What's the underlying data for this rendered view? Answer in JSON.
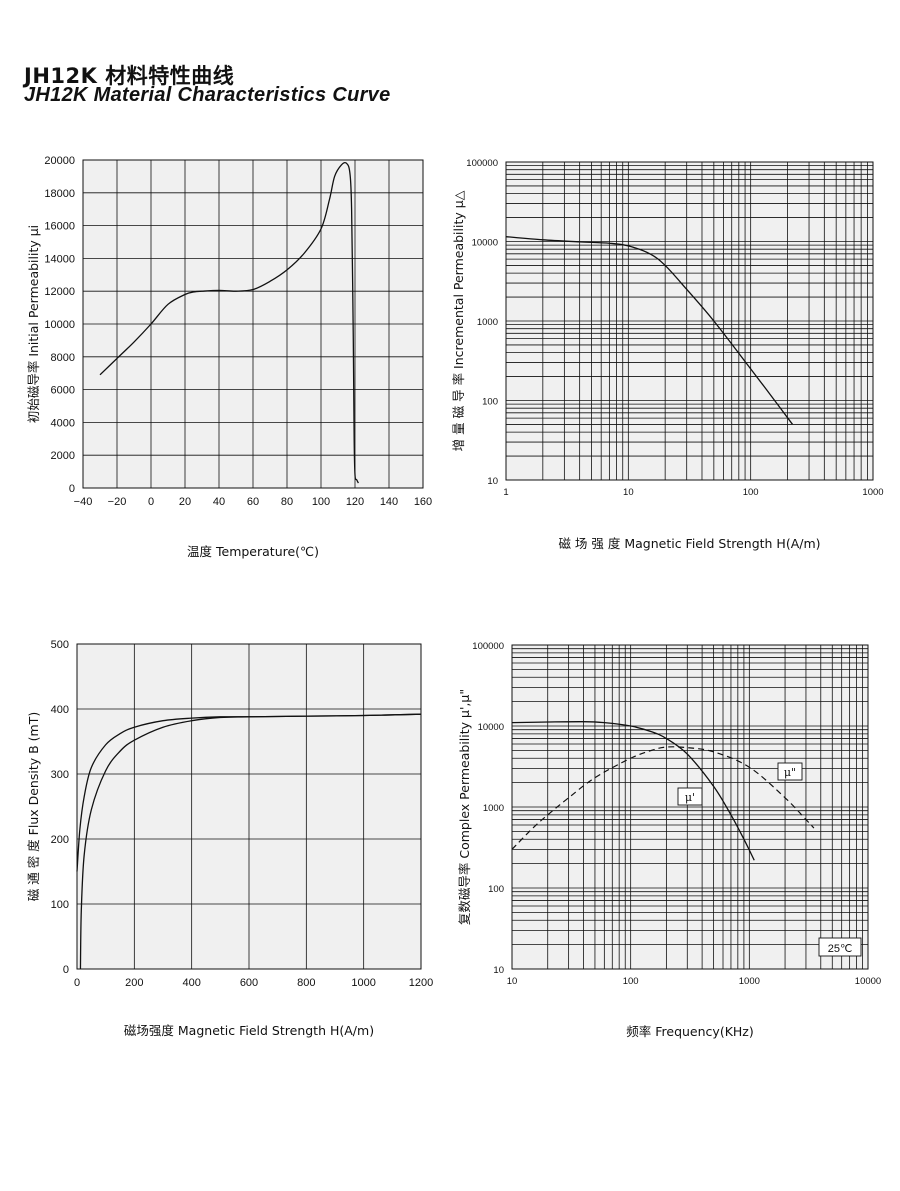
{
  "header": {
    "title_cn": "JH12K 材料特性曲线",
    "title_en": "JH12K  Material Characteristics Curve"
  },
  "chart_data": [
    {
      "type": "line",
      "id": "perm_vs_temp",
      "xlabel": "温度 Temperature(℃)",
      "ylabel": "初始磁导率  Initial Permeability μi",
      "xlim": [
        -40,
        160
      ],
      "ylim": [
        0,
        20000
      ],
      "x_ticks": [
        -40,
        -20,
        0,
        20,
        40,
        60,
        80,
        100,
        120,
        140,
        160
      ],
      "x_tick_labels": [
        "−40",
        "−20",
        "0",
        "20",
        "40",
        "60",
        "80",
        "100",
        "120",
        "140",
        "160"
      ],
      "y_ticks": [
        0,
        2000,
        4000,
        6000,
        8000,
        10000,
        12000,
        14000,
        16000,
        18000,
        20000
      ],
      "y_tick_labels": [
        "0",
        "2000",
        "4000",
        "6000",
        "8000",
        "10000",
        "12000",
        "14000",
        "16000",
        "18000",
        "20000"
      ],
      "grid": true,
      "series": [
        {
          "x": [
            -30,
            -20,
            -10,
            0,
            10,
            20,
            25,
            30,
            40,
            50,
            60,
            70,
            80,
            90,
            100,
            105,
            108,
            112,
            115,
            117,
            118,
            119,
            119.5,
            120,
            121,
            122
          ],
          "y": [
            6900,
            7900,
            8900,
            10000,
            11200,
            11800,
            11950,
            12000,
            12050,
            12000,
            12100,
            12600,
            13300,
            14300,
            15800,
            17600,
            19000,
            19700,
            19800,
            19200,
            17000,
            9000,
            3000,
            800,
            500,
            300
          ]
        }
      ]
    },
    {
      "type": "line",
      "id": "incr_perm_vs_field",
      "xlabel": "磁 场 强 度     Magnetic Field Strength H(A/m)",
      "ylabel": "增 量 磁 导 率   Incremental Permeability μ△",
      "x_log": true,
      "y_log": true,
      "xlim": [
        1,
        1000
      ],
      "ylim": [
        10,
        100000
      ],
      "x_ticks": [
        1,
        10,
        100,
        1000
      ],
      "x_tick_labels": [
        "1",
        "10",
        "100",
        "1000"
      ],
      "y_ticks": [
        10,
        100,
        1000,
        10000,
        100000
      ],
      "y_tick_labels": [
        "10",
        "100",
        "1000",
        "10000",
        "100000"
      ],
      "grid": true,
      "series": [
        {
          "x": [
            1,
            2,
            4,
            7,
            10,
            15,
            20,
            30,
            50,
            100,
            150,
            220
          ],
          "y": [
            11500,
            10500,
            9900,
            9500,
            8800,
            7000,
            5000,
            2500,
            1000,
            250,
            110,
            50
          ]
        }
      ]
    },
    {
      "type": "line",
      "id": "flux_vs_field",
      "xlabel": "磁场强度   Magnetic Field Strength H(A/m)",
      "ylabel": "磁 通 密 度   Flux Density B (mT)",
      "xlim": [
        0,
        1200
      ],
      "ylim": [
        0,
        500
      ],
      "x_ticks": [
        0,
        200,
        400,
        600,
        800,
        1000,
        1200
      ],
      "x_tick_labels": [
        "0",
        "200",
        "400",
        "600",
        "800",
        "1000",
        "1200"
      ],
      "y_ticks": [
        0,
        100,
        200,
        300,
        400,
        500
      ],
      "y_tick_labels": [
        "0",
        "100",
        "200",
        "300",
        "400",
        "500"
      ],
      "grid": true,
      "series": [
        {
          "x": [
            0,
            10,
            25,
            50,
            100,
            150,
            200,
            300,
            400,
            500,
            600,
            800,
            1000,
            1200
          ],
          "y": [
            150,
            215,
            265,
            310,
            345,
            362,
            372,
            382,
            386,
            388,
            388,
            389,
            390,
            392
          ]
        },
        {
          "x": [
            12,
            15,
            25,
            50,
            100,
            150,
            200,
            300,
            400,
            500,
            600,
            800,
            1000,
            1200
          ],
          "y": [
            0,
            90,
            175,
            245,
            305,
            335,
            352,
            372,
            382,
            387,
            388,
            389,
            390,
            392
          ]
        }
      ]
    },
    {
      "type": "line",
      "id": "complex_perm_vs_freq",
      "xlabel": "频率    Frequency(KHz)",
      "ylabel": "复数磁导率 Complex Permeability μ',μ\"",
      "x_log": true,
      "y_log": true,
      "xlim": [
        10,
        10000
      ],
      "ylim": [
        10,
        100000
      ],
      "x_ticks": [
        10,
        100,
        1000,
        10000
      ],
      "x_tick_labels": [
        "10",
        "100",
        "1000",
        "10000"
      ],
      "y_ticks": [
        10,
        100,
        1000,
        10000,
        100000
      ],
      "y_tick_labels": [
        "10",
        "100",
        "1000",
        "10000",
        "100000"
      ],
      "grid": true,
      "annotation": "25℃",
      "series": [
        {
          "name": "μ'",
          "style": "solid",
          "x": [
            10,
            20,
            40,
            60,
            100,
            150,
            200,
            300,
            500,
            700,
            900,
            1100
          ],
          "y": [
            11000,
            11200,
            11300,
            11000,
            10000,
            8500,
            7000,
            4500,
            1800,
            800,
            400,
            220
          ]
        },
        {
          "name": "μ\"",
          "style": "dashed",
          "x": [
            10,
            15,
            20,
            30,
            50,
            100,
            150,
            200,
            300,
            500,
            1000,
            2000,
            3000,
            3500
          ],
          "y": [
            300,
            550,
            800,
            1300,
            2300,
            4000,
            5000,
            5500,
            5400,
            4800,
            3100,
            1300,
            700,
            550
          ]
        }
      ]
    }
  ]
}
